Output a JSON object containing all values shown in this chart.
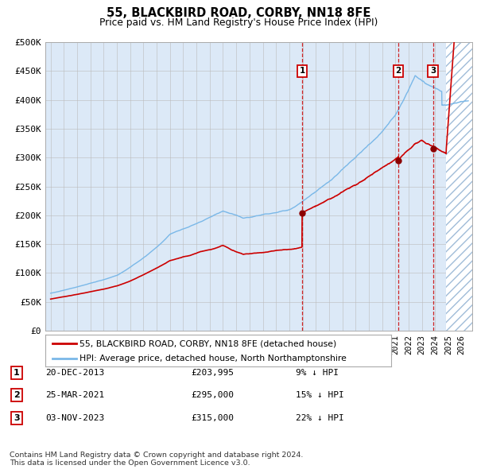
{
  "title": "55, BLACKBIRD ROAD, CORBY, NN18 8FE",
  "subtitle": "Price paid vs. HM Land Registry's House Price Index (HPI)",
  "ylim": [
    0,
    500000
  ],
  "yticks": [
    0,
    50000,
    100000,
    150000,
    200000,
    250000,
    300000,
    350000,
    400000,
    450000,
    500000
  ],
  "ytick_labels": [
    "£0",
    "£50K",
    "£100K",
    "£150K",
    "£200K",
    "£250K",
    "£300K",
    "£350K",
    "£400K",
    "£450K",
    "£500K"
  ],
  "xlim_start": 1994.6,
  "xlim_end": 2026.8,
  "background_color": "#ffffff",
  "plot_bg_color": "#dce9f7",
  "hatch_color": "#b0c8e8",
  "grid_color": "#bbbbbb",
  "hpi_line_color": "#7ab8e8",
  "price_line_color": "#cc0000",
  "sale_dot_color": "#8b0000",
  "vline_color": "#cc0000",
  "sale_points": [
    {
      "date_x": 2013.97,
      "price": 203995,
      "label": "1"
    },
    {
      "date_x": 2021.23,
      "price": 295000,
      "label": "2"
    },
    {
      "date_x": 2023.84,
      "price": 315000,
      "label": "3"
    }
  ],
  "legend_entries": [
    {
      "color": "#cc0000",
      "label": "55, BLACKBIRD ROAD, CORBY, NN18 8FE (detached house)"
    },
    {
      "color": "#7ab8e8",
      "label": "HPI: Average price, detached house, North Northamptonshire"
    }
  ],
  "table_rows": [
    {
      "num": "1",
      "date": "20-DEC-2013",
      "price": "£203,995",
      "pct": "9% ↓ HPI"
    },
    {
      "num": "2",
      "date": "25-MAR-2021",
      "price": "£295,000",
      "pct": "15% ↓ HPI"
    },
    {
      "num": "3",
      "date": "03-NOV-2023",
      "price": "£315,000",
      "pct": "22% ↓ HPI"
    }
  ],
  "footnote": "Contains HM Land Registry data © Crown copyright and database right 2024.\nThis data is licensed under the Open Government Licence v3.0.",
  "hatch_start_x": 2024.84
}
